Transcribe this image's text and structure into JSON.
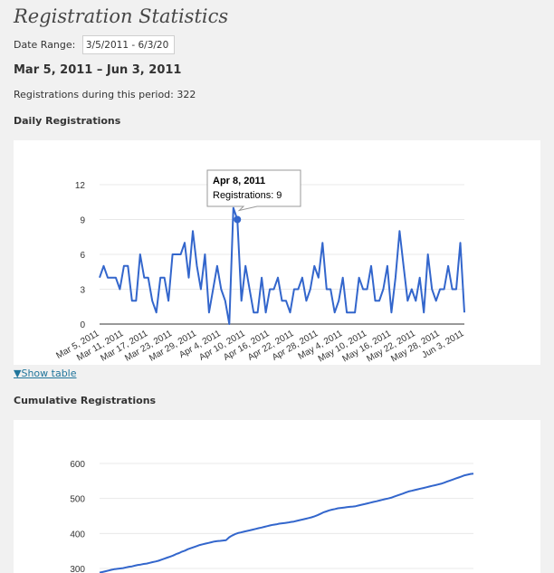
{
  "page": {
    "title": "Registration Statistics",
    "date_range_label": "Date Range:",
    "date_range_value": "3/5/2011 - 6/3/20",
    "range_heading": "Mar 5, 2011 – Jun 3, 2011",
    "registrations_text": "Registrations during this period: 322",
    "show_table_label": "▼Show table"
  },
  "daily": {
    "section_title": "Daily Registrations",
    "tooltip": {
      "title": "Apr 8, 2011",
      "body": "Registrations: 9"
    }
  },
  "cumulative": {
    "section_title": "Cumulative Registrations"
  },
  "chart_data": [
    {
      "type": "line",
      "title": "Daily Registrations",
      "ylim": [
        0,
        12
      ],
      "yticks": [
        0,
        3,
        6,
        9,
        12
      ],
      "xticks": [
        "Mar 5, 2011",
        "Mar 11, 2011",
        "Mar 17, 2011",
        "Mar 23, 2011",
        "Mar 29, 2011",
        "Apr 4, 2011",
        "Apr 10, 2011",
        "Apr 16, 2011",
        "Apr 22, 2011",
        "Apr 28, 2011",
        "May 4, 2011",
        "May 10, 2011",
        "May 16, 2011",
        "May 22, 2011",
        "May 28, 2011",
        "Jun 3, 2011"
      ],
      "series": [
        {
          "color": "#3366cc",
          "start_date": "2011-03-05",
          "values": [
            4,
            5,
            4,
            4,
            4,
            3,
            5,
            5,
            2,
            2,
            6,
            4,
            4,
            2,
            1,
            4,
            4,
            2,
            6,
            6,
            6,
            7,
            4,
            8,
            5,
            3,
            6,
            1,
            3,
            5,
            3,
            2,
            0,
            10,
            9,
            2,
            5,
            3,
            1,
            1,
            4,
            1,
            3,
            3,
            4,
            2,
            2,
            1,
            3,
            3,
            4,
            2,
            3,
            5,
            4,
            7,
            3,
            3,
            1,
            2,
            4,
            1,
            1,
            1,
            4,
            3,
            3,
            5,
            2,
            2,
            3,
            5,
            1,
            4,
            8,
            5,
            2,
            3,
            2,
            4,
            1,
            6,
            3,
            2,
            3,
            3,
            5,
            3,
            3,
            7,
            1
          ]
        }
      ],
      "highlight": {
        "date": "Apr 8, 2011",
        "value": 9
      }
    },
    {
      "type": "line",
      "title": "Cumulative Registrations",
      "yticks": [
        300,
        400,
        500,
        600
      ],
      "series": [
        {
          "color": "#3366cc",
          "start_date": "2011-03-05",
          "values": [
            288,
            290,
            292,
            294,
            296,
            298,
            299,
            300,
            301,
            303,
            305,
            306,
            308,
            310,
            311,
            313,
            314,
            316,
            318,
            320,
            322,
            325,
            328,
            331,
            334,
            337,
            341,
            344,
            348,
            351,
            355,
            358,
            361,
            364,
            367,
            369,
            371,
            373,
            375,
            377,
            378,
            379,
            380,
            381,
            389,
            394,
            398,
            401,
            403,
            405,
            407,
            409,
            411,
            413,
            415,
            417,
            419,
            421,
            423,
            425,
            426,
            428,
            429,
            430,
            431,
            433,
            434,
            436,
            438,
            440,
            442,
            444,
            446,
            449,
            452,
            456,
            460,
            463,
            466,
            468,
            470,
            472,
            473,
            474,
            475,
            476,
            477,
            478,
            480,
            482,
            484,
            486,
            488,
            490,
            492,
            494,
            496,
            498,
            500,
            502,
            505,
            508,
            511,
            514,
            517,
            520,
            522,
            524,
            526,
            528,
            530,
            532,
            534,
            536,
            538,
            540,
            542,
            545,
            548,
            551,
            554,
            557,
            560,
            563,
            566,
            568,
            570,
            571
          ]
        }
      ]
    }
  ]
}
